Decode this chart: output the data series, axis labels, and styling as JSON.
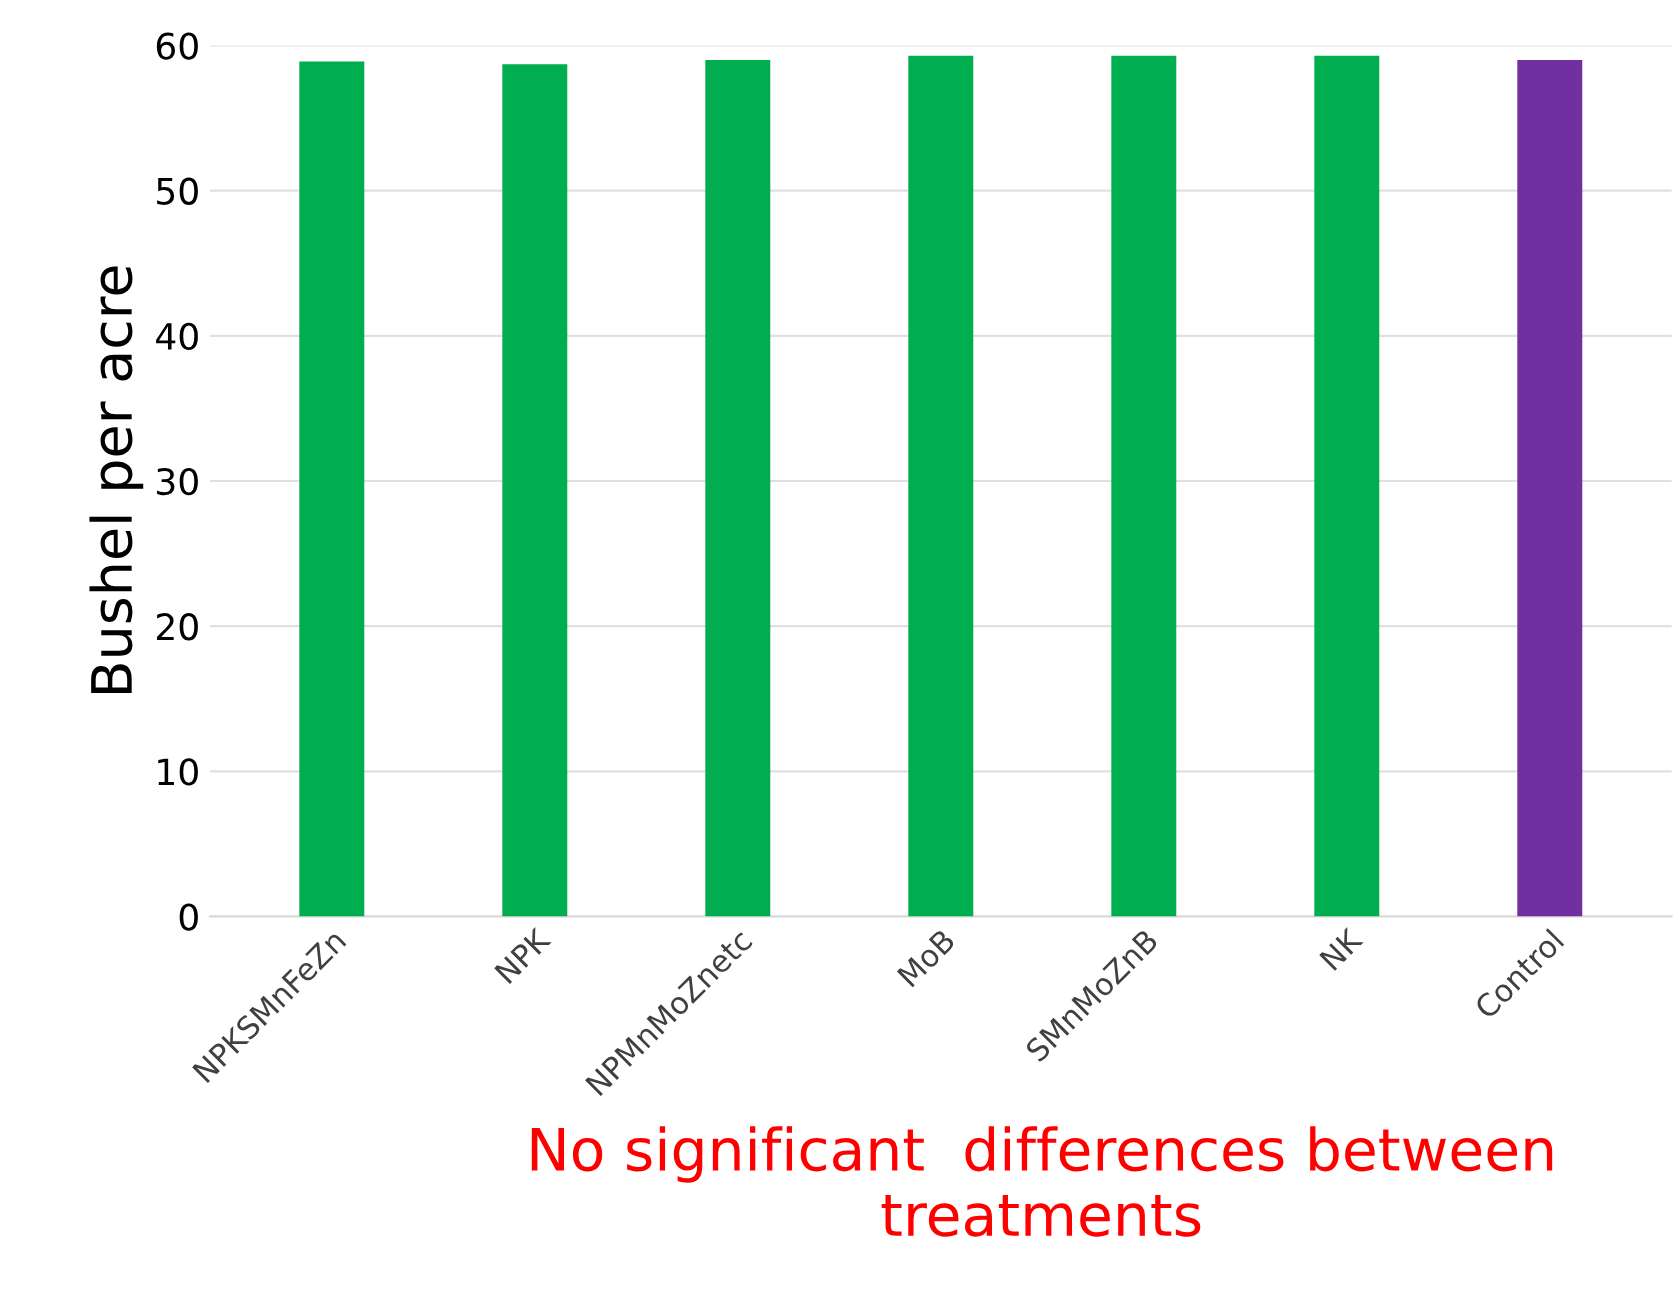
{
  "chart_data": {
    "type": "bar",
    "ylabel": "Bushel per acre",
    "categories": [
      "NPKSMnFeZn",
      "NPK",
      "NPMnMoZnetc",
      "MoB",
      "SMnMoZnB",
      "NK",
      "Control"
    ],
    "values": [
      58.9,
      58.7,
      59.0,
      59.3,
      59.3,
      59.3,
      59.0
    ],
    "colors": [
      "#00ad4f",
      "#00ad4f",
      "#00ad4f",
      "#00ad4f",
      "#00ad4f",
      "#00ad4f",
      "#7030a0"
    ],
    "ylim": [
      0,
      60
    ],
    "yticks": [
      0,
      10,
      20,
      30,
      40,
      50,
      60
    ],
    "grid": "y",
    "annotations": [
      "No significant  differences between treatments"
    ]
  }
}
